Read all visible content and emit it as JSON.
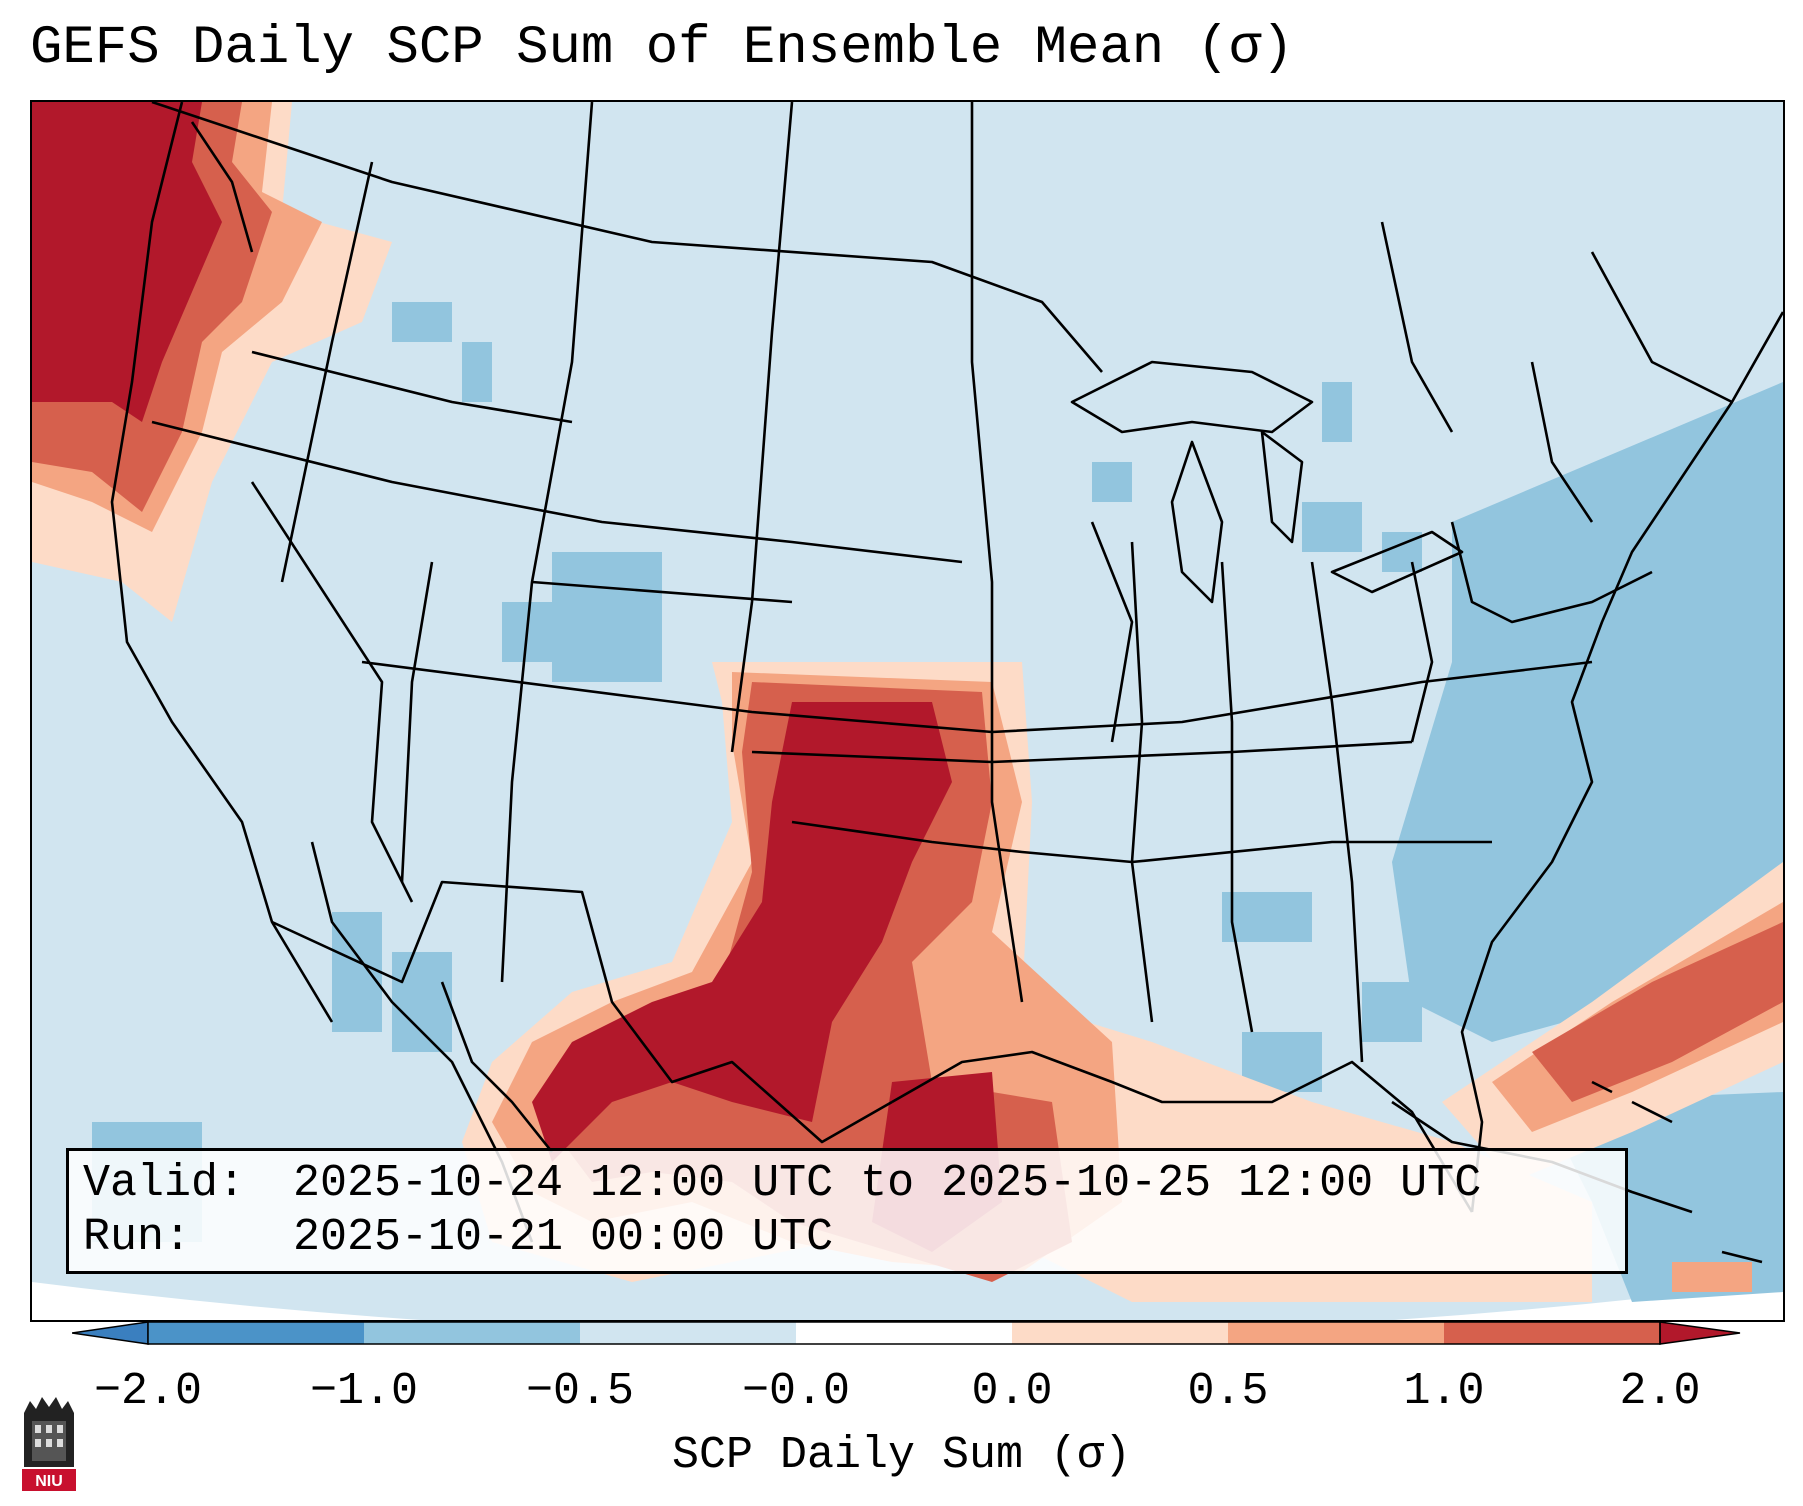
{
  "title": "GEFS Daily SCP Sum of Ensemble Mean (σ)",
  "info": {
    "valid_label": "Valid:",
    "valid_value": "2025-10-24 12:00 UTC to 2025-10-25 12:00 UTC",
    "run_label": "Run:",
    "run_value": "2025-10-21 00:00 UTC"
  },
  "colorbar": {
    "label": "SCP Daily Sum (σ)",
    "ticks": [
      "−2.0",
      "−1.0",
      "−0.5",
      "−0.0",
      "0.0",
      "0.5",
      "1.0",
      "2.0"
    ],
    "colors": {
      "under": "#3a7fbf",
      "bins": [
        "#4b93c8",
        "#92c5de",
        "#d1e5f0",
        "#ffffff",
        "#fddbc7",
        "#f4a582",
        "#d6604d",
        "#b2182b"
      ],
      "over": "#b2182b"
    }
  },
  "map": {
    "background_color": "#d1e5f0",
    "state_line_color": "#000000"
  },
  "logo": {
    "text": "NIU",
    "color": "#c8102e"
  }
}
